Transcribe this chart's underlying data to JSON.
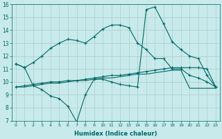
{
  "xlabel": "Humidex (Indice chaleur)",
  "x": [
    0,
    1,
    2,
    3,
    4,
    5,
    6,
    7,
    8,
    9,
    10,
    11,
    12,
    13,
    14,
    15,
    16,
    17,
    18,
    19,
    20,
    21,
    22,
    23
  ],
  "line1": [
    11.4,
    11.1,
    11.5,
    12.0,
    12.6,
    13.0,
    13.3,
    13.2,
    13.0,
    13.5,
    14.1,
    14.4,
    14.4,
    14.2,
    13.0,
    12.5,
    11.8,
    11.8,
    11.0,
    11.0,
    10.5,
    10.3,
    10.0,
    9.6
  ],
  "line2": [
    11.4,
    11.1,
    9.7,
    9.4,
    8.9,
    8.7,
    8.1,
    6.9,
    9.0,
    10.2,
    10.2,
    10.0,
    9.8,
    9.7,
    9.6,
    15.6,
    15.8,
    14.5,
    13.1,
    12.5,
    12.0,
    11.8,
    10.5,
    9.6
  ],
  "line3": [
    9.6,
    9.7,
    9.8,
    9.9,
    10.0,
    10.0,
    10.1,
    10.1,
    10.2,
    10.3,
    10.4,
    10.5,
    10.5,
    10.6,
    10.7,
    10.8,
    10.9,
    11.0,
    11.1,
    11.1,
    11.1,
    11.1,
    11.0,
    9.6
  ],
  "line4": [
    9.6,
    9.6,
    9.7,
    9.8,
    9.9,
    9.9,
    10.0,
    10.1,
    10.1,
    10.2,
    10.3,
    10.3,
    10.4,
    10.5,
    10.6,
    10.6,
    10.7,
    10.8,
    10.9,
    10.9,
    9.5,
    9.5,
    9.5,
    9.5
  ],
  "ylim": [
    7,
    16
  ],
  "yticks": [
    7,
    8,
    9,
    10,
    11,
    12,
    13,
    14,
    15,
    16
  ],
  "xticks": [
    0,
    1,
    2,
    3,
    4,
    5,
    6,
    7,
    8,
    9,
    10,
    11,
    12,
    13,
    14,
    15,
    16,
    17,
    18,
    19,
    20,
    21,
    22,
    23
  ],
  "line_color": "#006666",
  "bg_color": "#c8eaea",
  "grid_color": "#aacccc"
}
